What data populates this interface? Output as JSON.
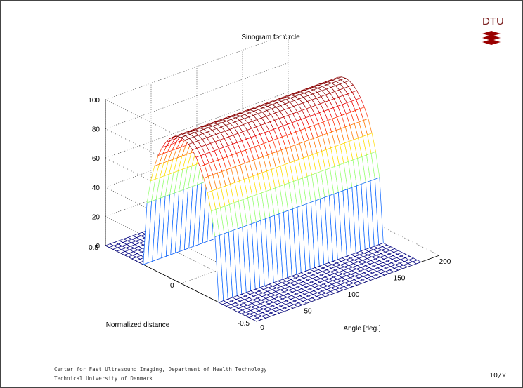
{
  "slide": {
    "footer_line1": "Center for Fast Ultrasound Imaging, Department of Health Technology",
    "footer_line2": "Technical University of Denmark",
    "page_number": "10/x",
    "logo_text": "DTU"
  },
  "colors": {
    "logo": "#990000",
    "frame": "#444444",
    "grid": "#555555",
    "axis_text": "#000000"
  },
  "chart_data": {
    "type": "mesh",
    "title": "Sinogram for circle",
    "xlabel": "Angle [deg.]",
    "ylabel": "Normalized distance",
    "zlabel": "",
    "xlim": [
      0,
      200
    ],
    "ylim": [
      -0.5,
      0.5
    ],
    "zlim": [
      0,
      100
    ],
    "xticks": [
      0,
      50,
      100,
      150,
      200
    ],
    "yticks": [
      -0.5,
      0,
      0.5
    ],
    "zticks": [
      0,
      20,
      40,
      60,
      80,
      100
    ],
    "xtick_labels": [
      "0",
      "50",
      "100",
      "150",
      "200"
    ],
    "ytick_labels": [
      "-0.5",
      "0",
      "0.5"
    ],
    "ztick_labels": [
      "0",
      "20",
      "40",
      "60",
      "80",
      "100"
    ],
    "grid": true,
    "colormap": "jet",
    "surface": {
      "description_of_function": "z(angle, d) = 200*sqrt(r^2 - d^2) for |d| < r, else 0 (projection of a circle; constant over angle)",
      "radius": 0.25,
      "peak": 100,
      "angle_range": [
        0,
        180
      ],
      "distance_range": [
        -0.5,
        0.5
      ]
    }
  }
}
